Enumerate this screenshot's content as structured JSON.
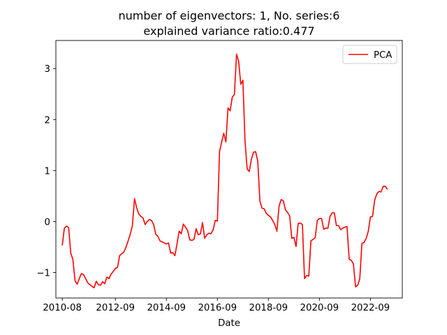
{
  "chart_data": {
    "type": "line",
    "title_line1": "number of eigenvectors: 1, No. series:6",
    "title_line2": "explained variance ratio:0.477",
    "xlabel": "Date",
    "ylabel": "",
    "legend_position": "top-right",
    "grid": false,
    "x_ticks": [
      "2010-08",
      "2012-09",
      "2014-09",
      "2016-09",
      "2018-09",
      "2020-09",
      "2022-09"
    ],
    "x_range": [
      "2010-05",
      "2023-12"
    ],
    "y_ticks": [
      -1,
      0,
      1,
      2,
      3
    ],
    "ylim": [
      -1.5,
      3.55
    ],
    "series": [
      {
        "name": "PCA",
        "color": "#ff0000",
        "points": [
          [
            "2010-08",
            -0.47
          ],
          [
            "2010-09",
            -0.13
          ],
          [
            "2010-10",
            -0.09
          ],
          [
            "2010-11",
            -0.12
          ],
          [
            "2010-12",
            -0.62
          ],
          [
            "2011-01",
            -0.74
          ],
          [
            "2011-02",
            -1.16
          ],
          [
            "2011-03",
            -1.23
          ],
          [
            "2011-04",
            -1.12
          ],
          [
            "2011-05",
            -1.02
          ],
          [
            "2011-06",
            -1.04
          ],
          [
            "2011-07",
            -1.12
          ],
          [
            "2011-08",
            -1.2
          ],
          [
            "2011-09",
            -1.24
          ],
          [
            "2011-10",
            -1.27
          ],
          [
            "2011-11",
            -1.3
          ],
          [
            "2011-12",
            -1.17
          ],
          [
            "2012-01",
            -1.24
          ],
          [
            "2012-02",
            -1.25
          ],
          [
            "2012-03",
            -1.18
          ],
          [
            "2012-04",
            -1.22
          ],
          [
            "2012-05",
            -1.09
          ],
          [
            "2012-06",
            -1.12
          ],
          [
            "2012-07",
            -1.03
          ],
          [
            "2012-08",
            -0.98
          ],
          [
            "2012-09",
            -0.92
          ],
          [
            "2012-10",
            -0.9
          ],
          [
            "2012-11",
            -0.67
          ],
          [
            "2012-12",
            -0.63
          ],
          [
            "2013-01",
            -0.6
          ],
          [
            "2013-02",
            -0.5
          ],
          [
            "2013-03",
            -0.38
          ],
          [
            "2013-04",
            -0.25
          ],
          [
            "2013-05",
            -0.08
          ],
          [
            "2013-06",
            0.45
          ],
          [
            "2013-07",
            0.27
          ],
          [
            "2013-08",
            0.15
          ],
          [
            "2013-09",
            0.1
          ],
          [
            "2013-10",
            0.07
          ],
          [
            "2013-11",
            -0.06
          ],
          [
            "2013-12",
            0.0
          ],
          [
            "2014-01",
            0.04
          ],
          [
            "2014-02",
            0.02
          ],
          [
            "2014-03",
            -0.06
          ],
          [
            "2014-04",
            -0.25
          ],
          [
            "2014-05",
            -0.29
          ],
          [
            "2014-06",
            -0.38
          ],
          [
            "2014-07",
            -0.4
          ],
          [
            "2014-08",
            -0.42
          ],
          [
            "2014-09",
            -0.44
          ],
          [
            "2014-10",
            -0.42
          ],
          [
            "2014-11",
            -0.62
          ],
          [
            "2014-12",
            -0.61
          ],
          [
            "2015-01",
            -0.67
          ],
          [
            "2015-02",
            -0.44
          ],
          [
            "2015-03",
            -0.19
          ],
          [
            "2015-04",
            -0.24
          ],
          [
            "2015-05",
            -0.05
          ],
          [
            "2015-06",
            -0.11
          ],
          [
            "2015-07",
            -0.18
          ],
          [
            "2015-08",
            -0.36
          ],
          [
            "2015-09",
            -0.37
          ],
          [
            "2015-10",
            -0.35
          ],
          [
            "2015-11",
            -0.14
          ],
          [
            "2015-12",
            -0.26
          ],
          [
            "2016-01",
            -0.24
          ],
          [
            "2016-02",
            -0.02
          ],
          [
            "2016-03",
            -0.33
          ],
          [
            "2016-04",
            -0.26
          ],
          [
            "2016-05",
            -0.23
          ],
          [
            "2016-06",
            -0.24
          ],
          [
            "2016-07",
            -0.16
          ],
          [
            "2016-08",
            0.02
          ],
          [
            "2016-09",
            0.01
          ],
          [
            "2016-10",
            1.37
          ],
          [
            "2016-11",
            1.56
          ],
          [
            "2016-12",
            1.73
          ],
          [
            "2017-01",
            1.56
          ],
          [
            "2017-02",
            2.23
          ],
          [
            "2017-03",
            2.17
          ],
          [
            "2017-04",
            2.44
          ],
          [
            "2017-05",
            2.49
          ],
          [
            "2017-06",
            3.28
          ],
          [
            "2017-07",
            3.14
          ],
          [
            "2017-08",
            2.69
          ],
          [
            "2017-09",
            2.77
          ],
          [
            "2017-10",
            1.58
          ],
          [
            "2017-11",
            1.03
          ],
          [
            "2017-12",
            0.98
          ],
          [
            "2018-01",
            1.22
          ],
          [
            "2018-02",
            1.36
          ],
          [
            "2018-03",
            1.37
          ],
          [
            "2018-04",
            1.18
          ],
          [
            "2018-05",
            0.4
          ],
          [
            "2018-06",
            0.26
          ],
          [
            "2018-07",
            0.25
          ],
          [
            "2018-08",
            0.16
          ],
          [
            "2018-09",
            0.12
          ],
          [
            "2018-10",
            0.09
          ],
          [
            "2018-11",
            0.02
          ],
          [
            "2018-12",
            -0.06
          ],
          [
            "2019-01",
            -0.19
          ],
          [
            "2019-02",
            0.3
          ],
          [
            "2019-03",
            0.43
          ],
          [
            "2019-04",
            0.41
          ],
          [
            "2019-05",
            0.23
          ],
          [
            "2019-06",
            0.18
          ],
          [
            "2019-07",
            0.11
          ],
          [
            "2019-08",
            -0.33
          ],
          [
            "2019-09",
            -0.31
          ],
          [
            "2019-10",
            -0.49
          ],
          [
            "2019-11",
            -0.04
          ],
          [
            "2019-12",
            -0.03
          ],
          [
            "2020-01",
            -0.06
          ],
          [
            "2020-02",
            -1.12
          ],
          [
            "2020-03",
            -1.06
          ],
          [
            "2020-04",
            -1.07
          ],
          [
            "2020-05",
            -0.38
          ],
          [
            "2020-06",
            -0.35
          ],
          [
            "2020-07",
            -0.32
          ],
          [
            "2020-08",
            0.02
          ],
          [
            "2020-09",
            0.06
          ],
          [
            "2020-10",
            0.06
          ],
          [
            "2020-11",
            -0.15
          ],
          [
            "2020-12",
            -0.13
          ],
          [
            "2021-01",
            -0.13
          ],
          [
            "2021-02",
            0.1
          ],
          [
            "2021-03",
            0.17
          ],
          [
            "2021-04",
            0.17
          ],
          [
            "2021-05",
            -0.08
          ],
          [
            "2021-06",
            -0.08
          ],
          [
            "2021-07",
            -0.16
          ],
          [
            "2021-08",
            -0.13
          ],
          [
            "2021-09",
            -0.11
          ],
          [
            "2021-10",
            -0.1
          ],
          [
            "2021-11",
            -0.74
          ],
          [
            "2021-12",
            -0.76
          ],
          [
            "2022-01",
            -0.83
          ],
          [
            "2022-02",
            -1.28
          ],
          [
            "2022-03",
            -1.25
          ],
          [
            "2022-04",
            -1.12
          ],
          [
            "2022-05",
            -0.43
          ],
          [
            "2022-06",
            -0.41
          ],
          [
            "2022-07",
            -0.33
          ],
          [
            "2022-08",
            -0.19
          ],
          [
            "2022-09",
            0.09
          ],
          [
            "2022-10",
            0.1
          ],
          [
            "2022-11",
            0.42
          ],
          [
            "2022-12",
            0.54
          ],
          [
            "2023-01",
            0.59
          ],
          [
            "2023-02",
            0.58
          ],
          [
            "2023-03",
            0.69
          ],
          [
            "2023-04",
            0.69
          ],
          [
            "2023-05",
            0.63
          ]
        ]
      }
    ]
  }
}
